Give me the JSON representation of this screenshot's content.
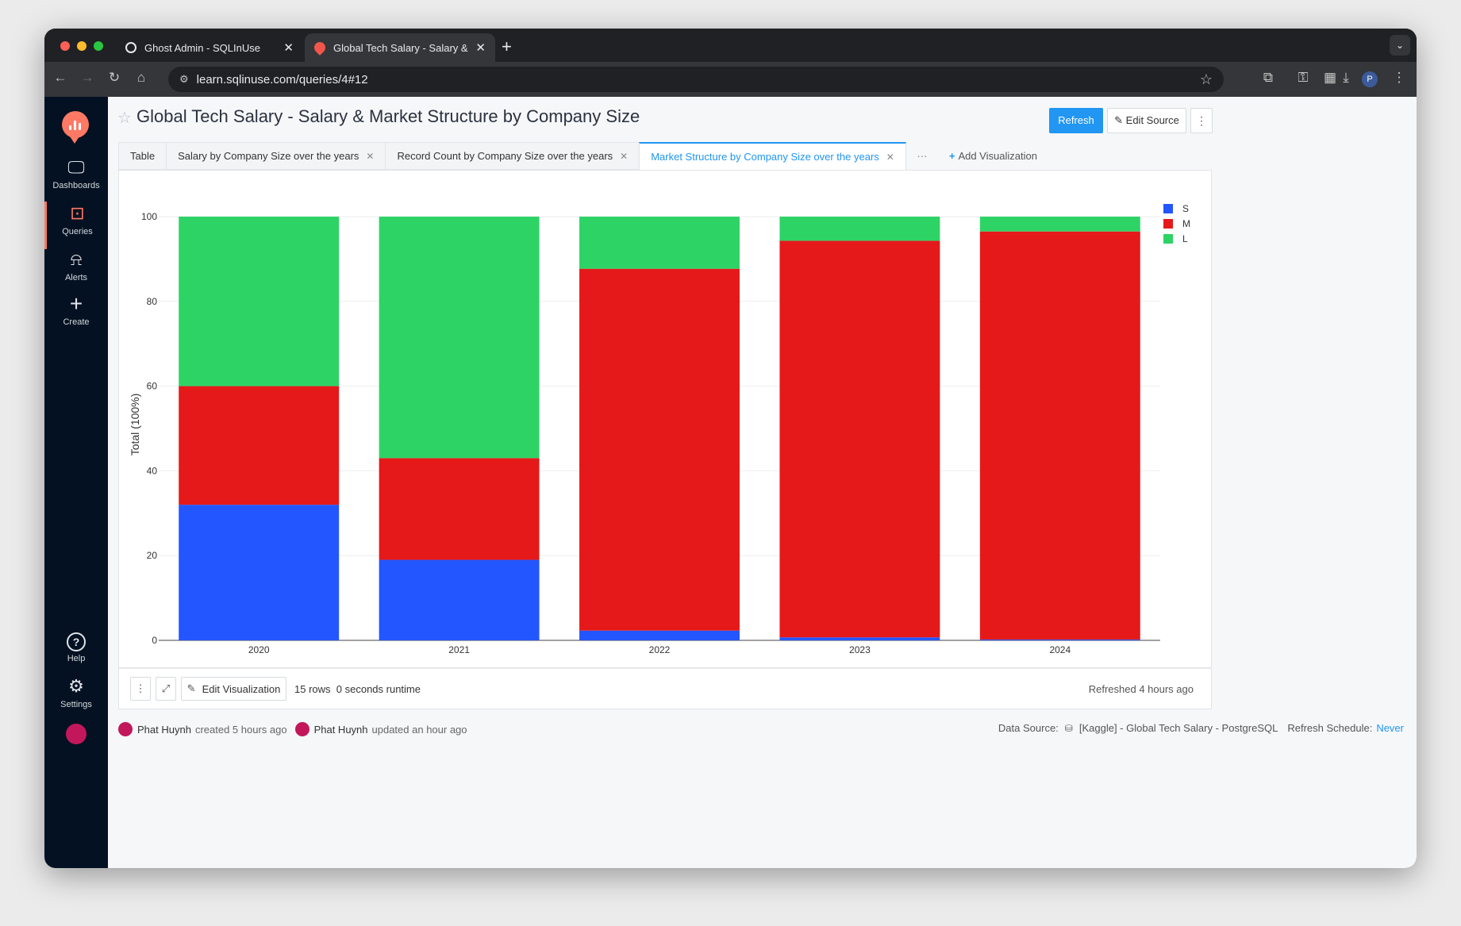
{
  "browser": {
    "tabs": [
      {
        "title": "Ghost Admin - SQLInUse",
        "active": false
      },
      {
        "title": "Global Tech Salary - Salary &",
        "active": true
      }
    ],
    "new_tab": "+",
    "url": "learn.sqlinuse.com/queries/4#12",
    "profile_initial": "P"
  },
  "sidebar": {
    "items": [
      {
        "label": "Dashboards",
        "icon": "monitor-icon",
        "active": false
      },
      {
        "label": "Queries",
        "icon": "terminal-icon",
        "active": true
      },
      {
        "label": "Alerts",
        "icon": "siren-icon",
        "active": false
      },
      {
        "label": "Create",
        "icon": "plus-icon",
        "active": false
      },
      {
        "label": "Help",
        "icon": "question-icon",
        "active": false
      },
      {
        "label": "Settings",
        "icon": "gear-icon",
        "active": false
      }
    ]
  },
  "header": {
    "title": "Global Tech Salary - Salary & Market Structure by Company Size",
    "refresh_label": "Refresh",
    "edit_source_label": "Edit Source"
  },
  "viz_tabs": [
    {
      "label": "Table",
      "closable": false,
      "active": false
    },
    {
      "label": "Salary by Company Size over the years",
      "closable": true,
      "active": false
    },
    {
      "label": "Record Count by Company Size over the years",
      "closable": true,
      "active": false
    },
    {
      "label": "Market Structure by Company Size over the years",
      "closable": true,
      "active": true
    }
  ],
  "more_tabs_label": "···",
  "add_visualization_label": "Add Visualization",
  "chart_data": {
    "type": "bar",
    "stacked": true,
    "normalized": true,
    "categories": [
      "2020",
      "2021",
      "2022",
      "2023",
      "2024"
    ],
    "series": [
      {
        "name": "S",
        "color": "#2356ff",
        "values": [
          32,
          19,
          2.3,
          0.7,
          0.2
        ]
      },
      {
        "name": "M",
        "color": "#e51919",
        "values": [
          28,
          24,
          85.4,
          93.6,
          96.3
        ]
      },
      {
        "name": "L",
        "color": "#2ed366",
        "values": [
          40,
          57,
          12.3,
          5.7,
          3.5
        ]
      }
    ],
    "ylabel": "Total (100%)",
    "xlabel": "",
    "ylim": [
      0,
      100
    ],
    "yticks": [
      "0",
      "20",
      "40",
      "60",
      "80",
      "100"
    ],
    "grid": true,
    "legend_position": "top-right"
  },
  "footer": {
    "edit_visualization_label": "Edit Visualization",
    "rows": "15 rows",
    "runtime": "0 seconds runtime",
    "refreshed": "Refreshed 4 hours ago"
  },
  "meta": {
    "creator": "Phat Huynh",
    "created_text": "created 5 hours ago",
    "updater": "Phat Huynh",
    "updated_text": "updated an hour ago"
  },
  "datasource": {
    "label": "Data Source:",
    "name": "[Kaggle] - Global Tech Salary - PostgreSQL",
    "schedule_label": "Refresh Schedule:",
    "schedule_value": "Never"
  }
}
